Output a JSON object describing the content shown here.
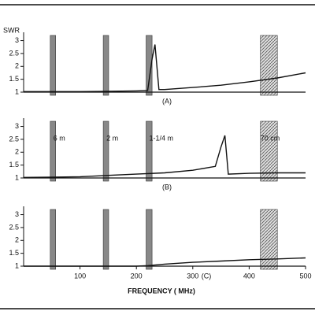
{
  "chart_data": [
    {
      "type": "line",
      "label": "(A)",
      "y_label": "SWR",
      "xlim": [
        0,
        500
      ],
      "ylim": [
        1,
        3.2
      ],
      "yticks": [
        1,
        1.5,
        2,
        2.5,
        3
      ],
      "x": [
        0,
        50,
        100,
        150,
        200,
        220,
        228,
        233,
        240,
        250,
        300,
        350,
        400,
        450,
        500
      ],
      "series": [
        {
          "color": "#111",
          "values": [
            1.02,
            1.02,
            1.02,
            1.03,
            1.05,
            1.06,
            2.3,
            2.85,
            1.1,
            1.1,
            1.18,
            1.27,
            1.4,
            1.55,
            1.75
          ]
        }
      ],
      "bands": [
        {
          "range": [
            50,
            54
          ]
        },
        {
          "range": [
            144,
            148
          ]
        },
        {
          "range": [
            220,
            225
          ]
        },
        {
          "range": [
            420,
            450
          ]
        }
      ]
    },
    {
      "type": "line",
      "label": "(B)",
      "xlim": [
        0,
        500
      ],
      "ylim": [
        1,
        3.2
      ],
      "yticks": [
        1,
        1.5,
        2,
        2.5,
        3
      ],
      "x": [
        0,
        50,
        100,
        150,
        200,
        250,
        300,
        340,
        350,
        357,
        363,
        400,
        450,
        500
      ],
      "series": [
        {
          "color": "#111",
          "values": [
            1.02,
            1.03,
            1.05,
            1.1,
            1.15,
            1.2,
            1.3,
            1.45,
            2.2,
            2.65,
            1.15,
            1.18,
            1.2,
            1.2
          ]
        }
      ],
      "bands": [
        {
          "label": "6 m",
          "range": [
            50,
            54
          ]
        },
        {
          "label": "2 m",
          "range": [
            144,
            148
          ]
        },
        {
          "label": "1-1/4 m",
          "range": [
            220,
            225
          ]
        },
        {
          "label": "70 cm",
          "range": [
            420,
            450
          ]
        }
      ]
    },
    {
      "type": "line",
      "label": "(C)",
      "x_label": "FREQUENCY ( MHz)",
      "xlim": [
        0,
        500
      ],
      "xticks": [
        100,
        200,
        300,
        400,
        500
      ],
      "ylim": [
        1,
        3.2
      ],
      "yticks": [
        1,
        1.5,
        2,
        2.5,
        3
      ],
      "x": [
        0,
        50,
        100,
        150,
        200,
        220,
        250,
        300,
        350,
        400,
        450,
        500
      ],
      "series": [
        {
          "color": "#111",
          "values": [
            1.0,
            1.0,
            1.0,
            1.0,
            1.0,
            1.02,
            1.08,
            1.15,
            1.2,
            1.25,
            1.28,
            1.32
          ]
        }
      ],
      "bands": [
        {
          "range": [
            50,
            54
          ]
        },
        {
          "range": [
            144,
            148
          ]
        },
        {
          "range": [
            220,
            225
          ]
        },
        {
          "range": [
            420,
            450
          ]
        }
      ]
    }
  ]
}
